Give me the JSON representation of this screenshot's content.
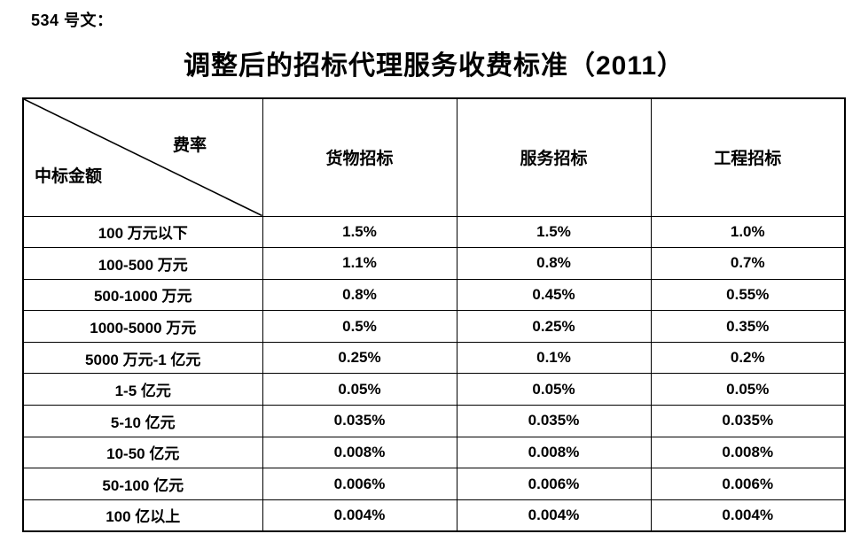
{
  "document": {
    "doc_label": "534 号文：",
    "title": "调整后的招标代理服务收费标准（2011）"
  },
  "table": {
    "corner": {
      "top_right": "费率",
      "bottom_left": "中标金额"
    },
    "columns": [
      "货物招标",
      "服务招标",
      "工程招标"
    ],
    "rows": [
      {
        "amount": "100 万元以下",
        "values": [
          "1.5%",
          "1.5%",
          "1.0%"
        ]
      },
      {
        "amount": "100-500 万元",
        "values": [
          "1.1%",
          "0.8%",
          "0.7%"
        ]
      },
      {
        "amount": "500-1000 万元",
        "values": [
          "0.8%",
          "0.45%",
          "0.55%"
        ]
      },
      {
        "amount": "1000-5000 万元",
        "values": [
          "0.5%",
          "0.25%",
          "0.35%"
        ]
      },
      {
        "amount": "5000 万元-1 亿元",
        "values": [
          "0.25%",
          "0.1%",
          "0.2%"
        ]
      },
      {
        "amount": "1-5 亿元",
        "values": [
          "0.05%",
          "0.05%",
          "0.05%"
        ]
      },
      {
        "amount": "5-10 亿元",
        "values": [
          "0.035%",
          "0.035%",
          "0.035%"
        ]
      },
      {
        "amount": "10-50 亿元",
        "values": [
          "0.008%",
          "0.008%",
          "0.008%"
        ]
      },
      {
        "amount": "50-100 亿元",
        "values": [
          "0.006%",
          "0.006%",
          "0.006%"
        ]
      },
      {
        "amount": "100 亿以上",
        "values": [
          "0.004%",
          "0.004%",
          "0.004%"
        ]
      }
    ],
    "colors": {
      "text": "#000000",
      "border": "#000000",
      "background": "#ffffff"
    }
  }
}
